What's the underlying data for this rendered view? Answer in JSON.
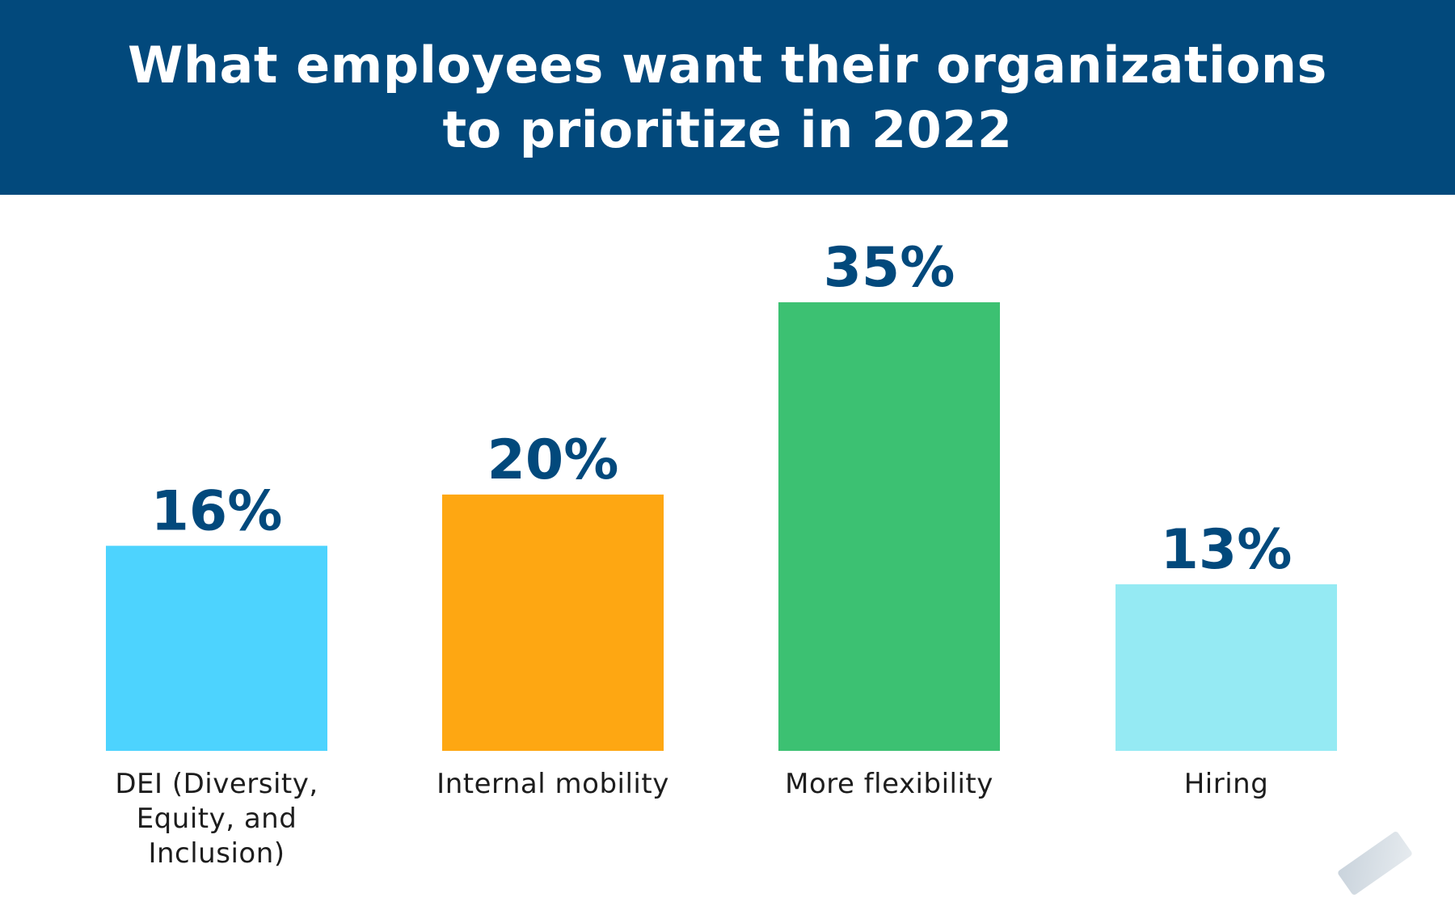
{
  "header": {
    "title": "What employees want their organizations to prioritize in 2022"
  },
  "colors": {
    "header_bg": "#02497c",
    "value_text": "#02497c",
    "category_text": "#1d1d1d"
  },
  "chart_data": {
    "type": "bar",
    "title": "What employees want their organizations to prioritize in 2022",
    "categories": [
      "DEI (Diversity, Equity, and Inclusion)",
      "Internal mobility",
      "More flexibility",
      "Hiring"
    ],
    "values": [
      16,
      20,
      35,
      13
    ],
    "value_labels": [
      "16%",
      "20%",
      "35%",
      "13%"
    ],
    "bar_colors": [
      "#4dd3fe",
      "#fea712",
      "#3cc172",
      "#95eaf3"
    ],
    "xlabel": "",
    "ylabel": "",
    "ylim": [
      0,
      35
    ],
    "grid": false,
    "legend": "none"
  }
}
